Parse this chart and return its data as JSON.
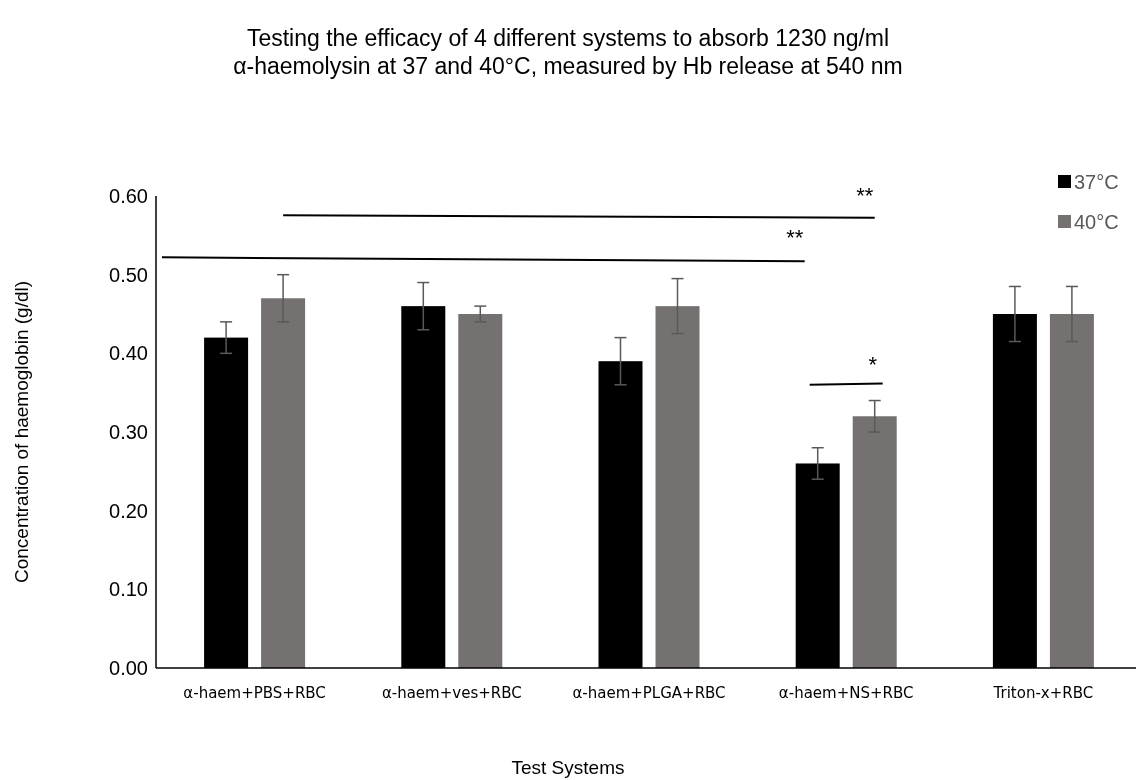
{
  "chart_data": {
    "type": "bar",
    "title": "Testing the efficacy of 4 different systems to absorb 1230 ng/ml α-haemolysin at 37 and 40°C, measured by Hb release at 540 nm",
    "xlabel": "Test Systems",
    "ylabel": "Concentration of haemoglobin (g/dl)",
    "categories": [
      "α-haem+PBS+RBC",
      "α-haem+ves+RBC",
      "α-haem+PLGA+RBC",
      "α-haem+NS+RBC",
      "Triton-x+RBC"
    ],
    "series": [
      {
        "name": "37°C",
        "color": "#000000",
        "values": [
          0.42,
          0.46,
          0.39,
          0.26,
          0.45
        ],
        "errors": [
          0.02,
          0.03,
          0.03,
          0.02,
          0.035
        ]
      },
      {
        "name": "40°C",
        "color": "#757171",
        "values": [
          0.47,
          0.45,
          0.46,
          0.32,
          0.45
        ],
        "errors": [
          0.03,
          0.01,
          0.035,
          0.02,
          0.035
        ]
      }
    ],
    "ylim": [
      0,
      0.6
    ],
    "yticks": [
      {
        "value": 0,
        "label": "0.00"
      },
      {
        "value": 0.1,
        "label": "0.10"
      },
      {
        "value": 0.2,
        "label": "0.20"
      },
      {
        "value": 0.3,
        "label": "0.30"
      },
      {
        "value": 0.4,
        "label": "0.40"
      },
      {
        "value": 0.5,
        "label": "0.50"
      },
      {
        "value": 0.6,
        "label": "0.60"
      }
    ],
    "annotations": [
      "**",
      "**",
      "*"
    ],
    "legend": "top right",
    "grid": false
  }
}
